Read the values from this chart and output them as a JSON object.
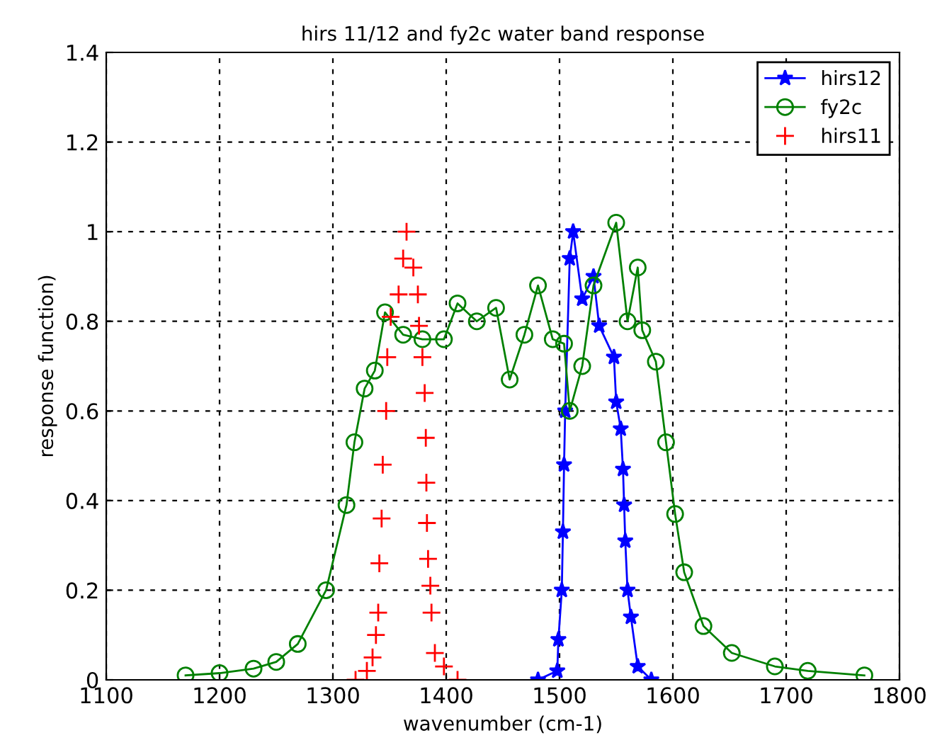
{
  "chart_data": {
    "type": "line",
    "title": "hirs 11/12 and fy2c water band response",
    "xlabel": "wavenumber (cm-1)",
    "ylabel": "response function)",
    "xlim": [
      1100,
      1800
    ],
    "ylim": [
      0,
      1.4
    ],
    "xticks": [
      1100,
      1200,
      1300,
      1400,
      1500,
      1600,
      1700,
      1800
    ],
    "yticks": [
      0,
      0.2,
      0.4,
      0.6,
      0.8,
      1,
      1.2,
      1.4
    ],
    "grid": true,
    "legend": "top right",
    "line_style": "solid",
    "series": [
      {
        "name": "hirs12",
        "color": "#0000ff",
        "marker": "star",
        "x": [
          1481,
          1498,
          1499,
          1502,
          1503,
          1504,
          1505,
          1509,
          1512,
          1520,
          1530,
          1535,
          1548,
          1550,
          1554,
          1556,
          1557,
          1558,
          1560,
          1563,
          1569,
          1581
        ],
        "values": [
          0.0,
          0.02,
          0.09,
          0.2,
          0.33,
          0.48,
          0.6,
          0.94,
          1.0,
          0.85,
          0.9,
          0.79,
          0.72,
          0.62,
          0.56,
          0.47,
          0.39,
          0.31,
          0.2,
          0.14,
          0.03,
          0.0
        ]
      },
      {
        "name": "fy2c",
        "color": "#008000",
        "marker": "circle",
        "x": [
          1170,
          1200,
          1230,
          1250,
          1269,
          1294,
          1312,
          1319,
          1328,
          1337,
          1346,
          1362,
          1379,
          1398,
          1410,
          1427,
          1444,
          1456,
          1469,
          1481,
          1494,
          1504,
          1509,
          1520,
          1530,
          1550,
          1560,
          1569,
          1573,
          1585,
          1594,
          1602,
          1610,
          1627,
          1652,
          1690,
          1719,
          1769
        ],
        "values": [
          0.01,
          0.015,
          0.025,
          0.04,
          0.08,
          0.2,
          0.39,
          0.53,
          0.65,
          0.69,
          0.82,
          0.77,
          0.76,
          0.76,
          0.84,
          0.8,
          0.83,
          0.67,
          0.77,
          0.88,
          0.76,
          0.75,
          0.6,
          0.7,
          0.88,
          1.02,
          0.8,
          0.92,
          0.78,
          0.71,
          0.53,
          0.37,
          0.24,
          0.12,
          0.06,
          0.03,
          0.02,
          0.01
        ]
      },
      {
        "name": "hirs11",
        "color": "#ff0000",
        "type": "scatter",
        "marker": "cross",
        "x": [
          1320,
          1330,
          1335,
          1338,
          1340,
          1341,
          1343,
          1344,
          1347,
          1348,
          1351,
          1358,
          1362,
          1365,
          1371,
          1375,
          1376,
          1379,
          1381,
          1382,
          1382.5,
          1383,
          1384,
          1386,
          1387,
          1390,
          1398,
          1410
        ],
        "values": [
          0.0,
          0.02,
          0.05,
          0.1,
          0.15,
          0.26,
          0.36,
          0.48,
          0.6,
          0.72,
          0.81,
          0.86,
          0.94,
          1.0,
          0.92,
          0.86,
          0.79,
          0.72,
          0.64,
          0.54,
          0.44,
          0.35,
          0.27,
          0.21,
          0.15,
          0.06,
          0.03,
          0.0
        ]
      }
    ]
  }
}
